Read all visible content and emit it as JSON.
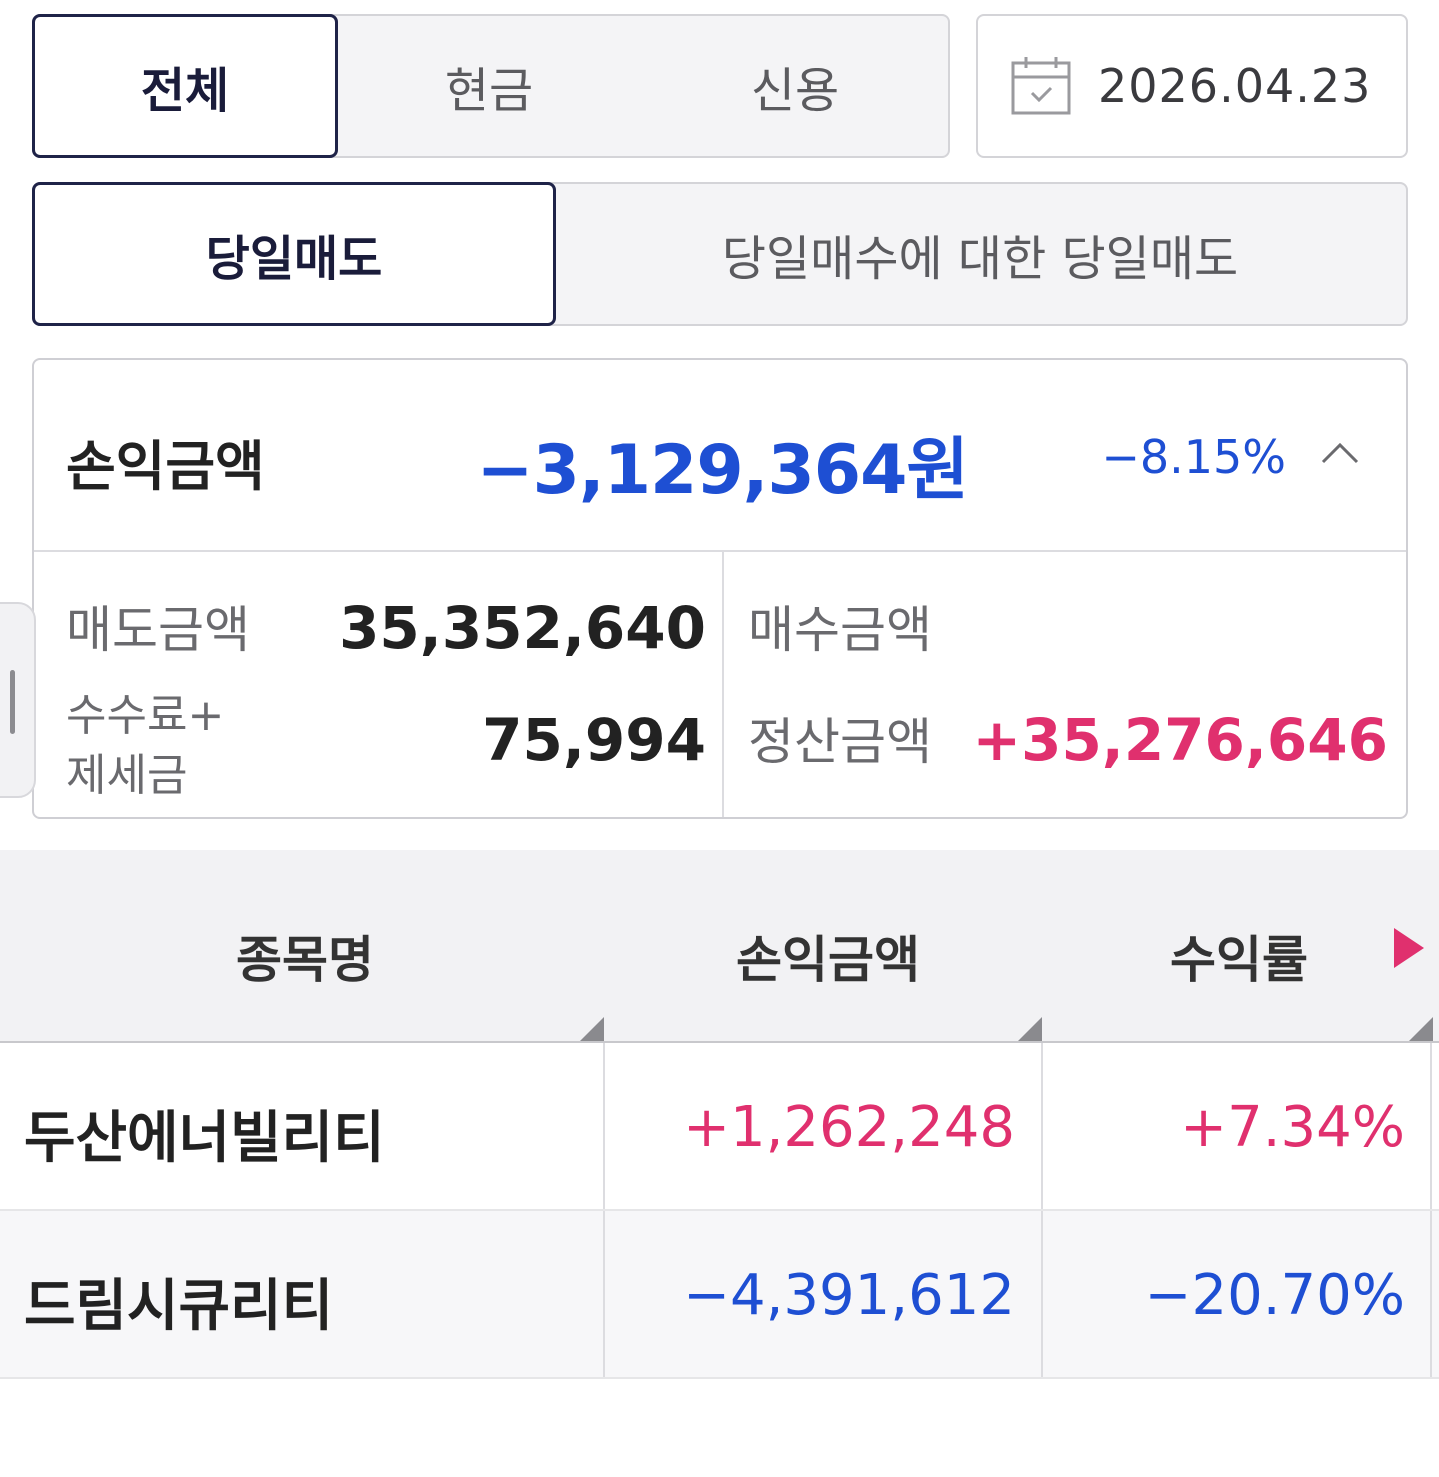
{
  "account_tabs": {
    "all": "전체",
    "cash": "현금",
    "credit": "신용"
  },
  "date": "2026.04.23",
  "trade_tabs": {
    "same_day_sell": "당일매도",
    "same_day_sell_for_buy": "당일매수에 대한 당일매도"
  },
  "summary": {
    "label": "손익금액",
    "amount": "−3,129,364원",
    "rate": "−8.15%",
    "sell_label": "매도금액",
    "sell_value": "35,352,640",
    "buy_label": "매수금액",
    "fee_label_1": "수수료+",
    "fee_label_2": "제세금",
    "fee_value": "75,994",
    "settle_label": "정산금액",
    "settle_value": "+35,276,646"
  },
  "table": {
    "headers": {
      "name": "종목명",
      "pl": "손익금액",
      "rate": "수익률"
    },
    "rows": [
      {
        "name": "두산에너빌리티",
        "pl": "+1,262,248",
        "rate": "+7.34%"
      },
      {
        "name": "드림시큐리티",
        "pl": "−4,391,612",
        "rate": "−20.70%"
      }
    ]
  },
  "colors": {
    "positive": "#e0306e",
    "negative": "#1e4fd3",
    "active_border": "#1f2348"
  }
}
